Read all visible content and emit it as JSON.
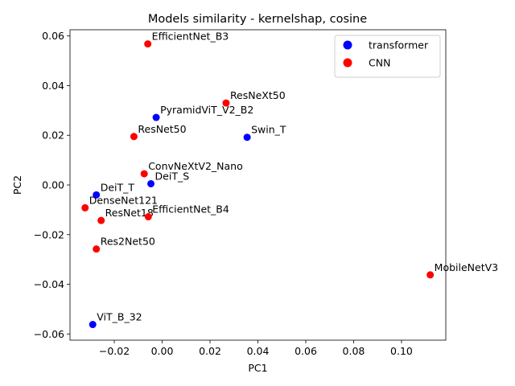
{
  "chart_data": {
    "type": "scatter",
    "title": "Models similarity - kernelshap, cosine",
    "xlabel": "PC1",
    "ylabel": "PC2",
    "xlim": [
      -0.0385,
      0.1185
    ],
    "ylim": [
      -0.0625,
      0.0625
    ],
    "xticks": [
      -0.02,
      0.0,
      0.02,
      0.04,
      0.06,
      0.08,
      0.1
    ],
    "xtick_labels": [
      "−0.02",
      "0.00",
      "0.02",
      "0.04",
      "0.06",
      "0.08",
      "0.10"
    ],
    "yticks": [
      -0.06,
      -0.04,
      -0.02,
      0.0,
      0.02,
      0.04,
      0.06
    ],
    "ytick_labels": [
      "−0.06",
      "−0.04",
      "−0.02",
      "0.00",
      "0.02",
      "0.04",
      "0.06"
    ],
    "grid": false,
    "legend_position": "top-right",
    "series": [
      {
        "name": "transformer",
        "color": "#0000ff",
        "points": [
          {
            "label": "PyramidViT_V2_B2",
            "x": -0.0025,
            "y": 0.0272
          },
          {
            "label": "Swin_T",
            "x": 0.0355,
            "y": 0.0192
          },
          {
            "label": "DeiT_S",
            "x": -0.0047,
            "y": 0.0005
          },
          {
            "label": "DeiT_T",
            "x": -0.0275,
            "y": -0.004
          },
          {
            "label": "ViT_B_32",
            "x": -0.029,
            "y": -0.0562
          }
        ]
      },
      {
        "name": "CNN",
        "color": "#ff0000",
        "points": [
          {
            "label": "EfficientNet_B3",
            "x": -0.006,
            "y": 0.0568
          },
          {
            "label": "ResNeXt50",
            "x": 0.0267,
            "y": 0.033
          },
          {
            "label": "ResNet50",
            "x": -0.0118,
            "y": 0.0195
          },
          {
            "label": "ConvNeXtV2_Nano",
            "x": -0.0075,
            "y": 0.0045
          },
          {
            "label": "DenseNet121",
            "x": -0.0322,
            "y": -0.0092
          },
          {
            "label": "ResNet18",
            "x": -0.0255,
            "y": -0.0143
          },
          {
            "label": "EfficientNet_B4",
            "x": -0.0058,
            "y": -0.0128
          },
          {
            "label": "Res2Net50",
            "x": -0.0275,
            "y": -0.0258
          },
          {
            "label": "MobileNetV3",
            "x": 0.112,
            "y": -0.0362
          }
        ]
      }
    ]
  }
}
